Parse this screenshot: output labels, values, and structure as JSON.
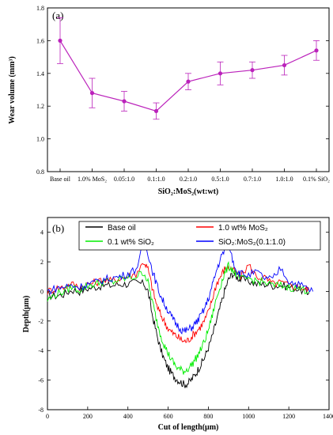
{
  "chart_data": [
    {
      "type": "line",
      "panel_label": "(a)",
      "ylabel": "Wear volume (mm³)",
      "xlabel": "SiO₂:MoS₂(wt:wt)",
      "ylim": [
        0.8,
        1.8
      ],
      "yticks": [
        "0.8",
        "1.0",
        "1.2",
        "1.4",
        "1.6",
        "1.8"
      ],
      "categories": [
        "Base oil",
        "1.0% MoS₂",
        "0.05:1.0",
        "0.1:1.0",
        "0.2:1.0",
        "0.5:1.0",
        "0.7:1.0",
        "1.0:1.0",
        "0.1% SiO₂"
      ],
      "values": [
        1.6,
        1.28,
        1.23,
        1.17,
        1.35,
        1.4,
        1.42,
        1.45,
        1.54
      ],
      "errors": [
        0.14,
        0.09,
        0.06,
        0.05,
        0.05,
        0.07,
        0.05,
        0.06,
        0.06
      ],
      "color": "#bb22bb",
      "grid": false
    },
    {
      "type": "line",
      "panel_label": "(b)",
      "ylabel": "Depth(μm)",
      "xlabel": "Cut of length(μm)",
      "xlim": [
        0,
        1400
      ],
      "ylim": [
        -8,
        5
      ],
      "xticks": [
        "0",
        "200",
        "400",
        "600",
        "800",
        "1000",
        "1200",
        "1400"
      ],
      "yticks": [
        "-8",
        "-6",
        "-4",
        "-2",
        "0",
        "2",
        "4"
      ],
      "legend_position": "top",
      "grid": false,
      "series": [
        {
          "name": "Base oil",
          "color": "#000000",
          "x": [
            0,
            40,
            80,
            120,
            160,
            200,
            240,
            280,
            320,
            360,
            400,
            440,
            480,
            500,
            520,
            540,
            560,
            580,
            600,
            620,
            640,
            660,
            680,
            700,
            720,
            740,
            760,
            780,
            800,
            820,
            840,
            860,
            880,
            900,
            920,
            940,
            960,
            1000,
            1040,
            1080,
            1120,
            1160,
            1200,
            1240,
            1280,
            1300
          ],
          "y": [
            -0.3,
            -0.3,
            -0.2,
            0.1,
            0.0,
            0.2,
            0.3,
            0.4,
            0.4,
            0.5,
            0.5,
            0.6,
            0.5,
            0.0,
            -1.5,
            -2.7,
            -3.8,
            -4.6,
            -5.2,
            -5.6,
            -5.9,
            -6.1,
            -6.3,
            -6.2,
            -5.9,
            -5.5,
            -5.0,
            -4.5,
            -3.8,
            -3.0,
            -2.0,
            -1.0,
            0.0,
            0.8,
            1.2,
            1.0,
            0.8,
            0.7,
            0.5,
            0.5,
            0.4,
            0.4,
            0.3,
            0.2,
            0.0,
            -0.1
          ]
        },
        {
          "name": "1.0 wt% MoS₂",
          "color": "#ff0000",
          "x": [
            0,
            40,
            80,
            120,
            160,
            200,
            240,
            280,
            320,
            360,
            400,
            440,
            480,
            500,
            520,
            540,
            560,
            580,
            600,
            620,
            640,
            660,
            680,
            700,
            720,
            740,
            760,
            780,
            800,
            820,
            840,
            860,
            880,
            900,
            920,
            940,
            960,
            1000,
            1040,
            1080,
            1120,
            1160,
            1200,
            1240,
            1280,
            1300
          ],
          "y": [
            0.0,
            0.2,
            0.3,
            0.5,
            0.3,
            0.5,
            0.6,
            0.8,
            0.7,
            0.9,
            1.0,
            1.2,
            2.0,
            1.5,
            0.3,
            -0.8,
            -1.5,
            -2.0,
            -2.5,
            -2.8,
            -3.0,
            -3.2,
            -3.4,
            -3.3,
            -3.0,
            -2.7,
            -2.4,
            -2.0,
            -1.4,
            -0.5,
            0.5,
            1.0,
            1.5,
            1.6,
            1.5,
            1.2,
            1.0,
            1.8,
            1.0,
            0.9,
            0.5,
            0.6,
            0.4,
            0.3,
            0.2,
            0.1
          ]
        },
        {
          "name": "0.1 wt% SiO₂",
          "color": "#00ee00",
          "x": [
            0,
            40,
            80,
            120,
            160,
            200,
            240,
            280,
            320,
            360,
            400,
            440,
            480,
            500,
            520,
            540,
            560,
            580,
            600,
            620,
            640,
            660,
            680,
            700,
            720,
            740,
            760,
            780,
            800,
            820,
            840,
            860,
            880,
            900,
            920,
            940,
            960,
            1000,
            1040,
            1080,
            1120,
            1160,
            1200,
            1240,
            1280,
            1300
          ],
          "y": [
            -0.6,
            -0.2,
            0.0,
            0.3,
            0.1,
            0.4,
            0.5,
            0.7,
            0.6,
            0.8,
            0.9,
            1.0,
            1.3,
            0.6,
            -0.6,
            -1.8,
            -2.8,
            -3.6,
            -4.2,
            -4.7,
            -5.1,
            -5.3,
            -5.4,
            -5.2,
            -4.9,
            -4.5,
            -4.0,
            -3.4,
            -2.6,
            -1.6,
            -0.5,
            0.4,
            1.2,
            1.7,
            1.5,
            1.1,
            0.8,
            0.9,
            0.7,
            0.6,
            0.4,
            0.4,
            0.3,
            0.2,
            0.1,
            0.0
          ]
        },
        {
          "name": "SiO₂:MoS₂(0.1:1.0)",
          "color": "#0000ff",
          "x": [
            0,
            40,
            80,
            120,
            160,
            200,
            240,
            280,
            320,
            360,
            400,
            440,
            480,
            500,
            520,
            540,
            560,
            580,
            600,
            620,
            640,
            660,
            680,
            700,
            720,
            740,
            760,
            780,
            800,
            820,
            840,
            860,
            880,
            900,
            920,
            940,
            960,
            1000,
            1040,
            1080,
            1120,
            1160,
            1200,
            1240,
            1280,
            1320
          ],
          "y": [
            0.0,
            0.2,
            0.3,
            0.4,
            0.3,
            0.5,
            0.6,
            0.8,
            0.9,
            1.0,
            1.2,
            1.5,
            3.2,
            2.6,
            1.5,
            0.6,
            -0.2,
            -0.8,
            -1.3,
            -1.8,
            -2.2,
            -2.5,
            -2.7,
            -2.6,
            -2.4,
            -2.1,
            -1.7,
            -1.2,
            -0.5,
            0.4,
            1.4,
            2.2,
            2.8,
            3.4,
            2.2,
            1.4,
            1.2,
            1.1,
            1.3,
            0.9,
            0.8,
            1.6,
            0.7,
            0.5,
            0.3,
            0.0
          ]
        }
      ]
    }
  ]
}
